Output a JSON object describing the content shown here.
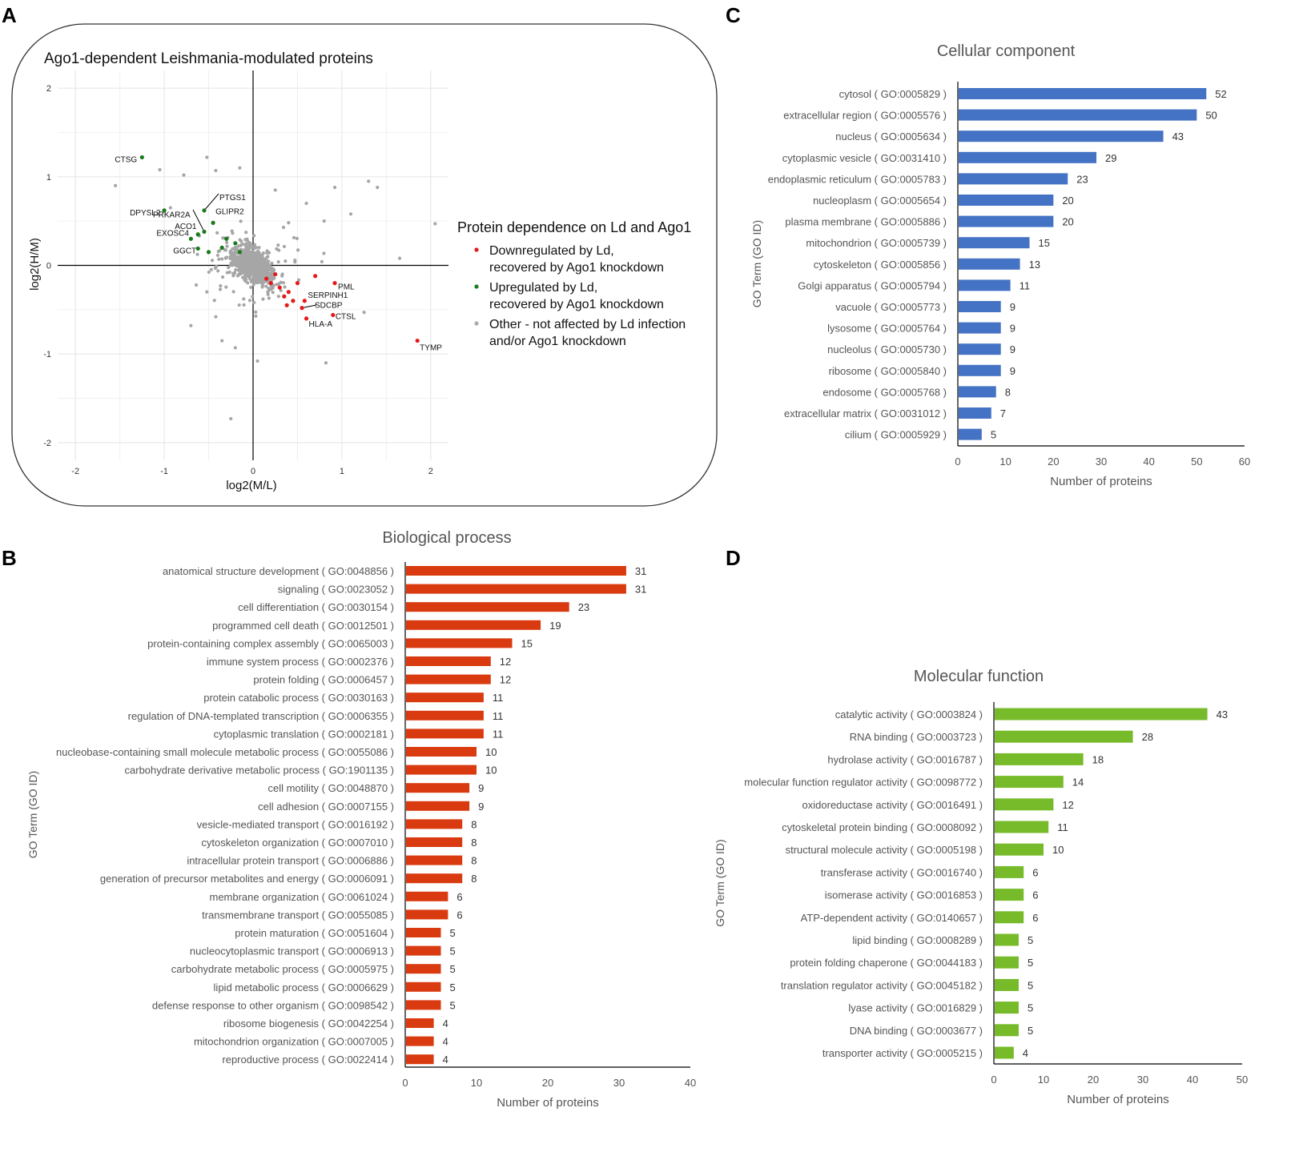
{
  "panels": {
    "a": "A",
    "b": "B",
    "c": "C",
    "d": "D"
  },
  "chart_data": [
    {
      "id": "A",
      "type": "scatter",
      "title_pre": "Ago1-dependent ",
      "title_italic": "Leishmania",
      "title_post": "-modulated proteins",
      "xlabel": "log2(M/L)",
      "ylabel": "log2(H/M)",
      "xlim": [
        -2.2,
        2.2
      ],
      "ylim": [
        -2.2,
        2.2
      ],
      "xticks": [
        -2,
        -1,
        0,
        1,
        2
      ],
      "yticks": [
        -2,
        -1,
        0,
        1,
        2
      ],
      "legend_title": "Protein dependence on Ld and Ago1",
      "legend": [
        {
          "name": "Downregulated by Ld, recovered by Ago1 knockdown",
          "line1": "Downregulated by Ld,",
          "line2": "recovered by Ago1 knockdown",
          "color": "#e41a1c"
        },
        {
          "name": "Upregulated by Ld, recovered by Ago1 knockdown",
          "line1": "Upregulated by Ld,",
          "line2": "recovered by Ago1 knockdown",
          "color": "#1b7a1b"
        },
        {
          "name": "Other - not affected by Ld infection and/or Ago1 knockdown",
          "line1": "Other - not affected by Ld infection",
          "line2": "and/or Ago1 knockdown",
          "color": "#aaaaaa"
        }
      ],
      "labeled_points": [
        {
          "label": "CTSG",
          "x": -1.25,
          "y": 1.22,
          "group": "up"
        },
        {
          "label": "PRKAR2A",
          "x": -0.55,
          "y": 0.38,
          "group": "up"
        },
        {
          "label": "PTGS1",
          "x": -0.55,
          "y": 0.62,
          "group": "up"
        },
        {
          "label": "DPYSL2",
          "x": -1.0,
          "y": 0.62,
          "group": "up"
        },
        {
          "label": "GLIPR2",
          "x": -0.45,
          "y": 0.48,
          "group": "up"
        },
        {
          "label": "ACO1",
          "x": -0.62,
          "y": 0.35,
          "group": "up"
        },
        {
          "label": "EXOSC4",
          "x": -0.7,
          "y": 0.3,
          "group": "up"
        },
        {
          "label": "GGCT",
          "x": -0.62,
          "y": 0.19,
          "group": "up"
        },
        {
          "label": "PML",
          "x": 0.92,
          "y": -0.2,
          "group": "down"
        },
        {
          "label": "SERPINH1",
          "x": 0.58,
          "y": -0.4,
          "group": "down"
        },
        {
          "label": "SDCBP",
          "x": 0.55,
          "y": -0.48,
          "group": "down"
        },
        {
          "label": "HLA-A",
          "x": 0.6,
          "y": -0.6,
          "group": "down"
        },
        {
          "label": "CTSL",
          "x": 0.9,
          "y": -0.56,
          "group": "down"
        },
        {
          "label": "TYMP",
          "x": 1.85,
          "y": -0.85,
          "group": "down"
        }
      ],
      "extra_up_points": [
        [
          -0.35,
          0.2
        ],
        [
          -0.2,
          0.25
        ],
        [
          -0.15,
          0.15
        ],
        [
          -0.5,
          0.15
        ],
        [
          -0.3,
          0.3
        ]
      ],
      "extra_down_points": [
        [
          0.2,
          -0.2
        ],
        [
          0.3,
          -0.25
        ],
        [
          0.35,
          -0.35
        ],
        [
          0.4,
          -0.3
        ],
        [
          0.25,
          -0.1
        ],
        [
          0.45,
          -0.4
        ],
        [
          0.15,
          -0.15
        ],
        [
          0.5,
          -0.2
        ],
        [
          0.7,
          -0.12
        ],
        [
          0.38,
          -0.45
        ]
      ]
    },
    {
      "id": "C",
      "type": "bar",
      "orientation": "horizontal",
      "title": "Cellular component",
      "xlabel": "Number of proteins",
      "ylabel": "GO Term (GO ID)",
      "xlim": [
        0,
        60
      ],
      "xticks": [
        0,
        10,
        20,
        30,
        40,
        50,
        60
      ],
      "color": "#4472c4",
      "categories": [
        "cytosol ( GO:0005829 )",
        "extracellular region ( GO:0005576 )",
        "nucleus ( GO:0005634 )",
        "cytoplasmic vesicle ( GO:0031410 )",
        "endoplasmic reticulum ( GO:0005783 )",
        "nucleoplasm ( GO:0005654 )",
        "plasma membrane ( GO:0005886 )",
        "mitochondrion ( GO:0005739 )",
        "cytoskeleton ( GO:0005856 )",
        "Golgi apparatus ( GO:0005794 )",
        "vacuole ( GO:0005773 )",
        "lysosome ( GO:0005764 )",
        "nucleolus ( GO:0005730 )",
        "ribosome ( GO:0005840 )",
        "endosome ( GO:0005768 )",
        "extracellular matrix ( GO:0031012 )",
        "cilium ( GO:0005929 )"
      ],
      "values": [
        52,
        50,
        43,
        29,
        23,
        20,
        20,
        15,
        13,
        11,
        9,
        9,
        9,
        9,
        8,
        7,
        5
      ]
    },
    {
      "id": "B",
      "type": "bar",
      "orientation": "horizontal",
      "title": "Biological process",
      "xlabel": "Number of proteins",
      "ylabel": "GO Term (GO ID)",
      "xlim": [
        0,
        40
      ],
      "xticks": [
        0,
        10,
        20,
        30,
        40
      ],
      "color": "#d93a0f",
      "categories": [
        "anatomical structure development ( GO:0048856 )",
        "signaling ( GO:0023052 )",
        "cell differentiation ( GO:0030154 )",
        "programmed cell death ( GO:0012501 )",
        "protein-containing complex assembly ( GO:0065003 )",
        "immune system process ( GO:0002376 )",
        "protein folding ( GO:0006457 )",
        "protein catabolic process ( GO:0030163 )",
        "regulation of DNA-templated transcription ( GO:0006355 )",
        "cytoplasmic translation ( GO:0002181 )",
        "nucleobase-containing small molecule metabolic process ( GO:0055086 )",
        "carbohydrate derivative metabolic process ( GO:1901135 )",
        "cell motility ( GO:0048870 )",
        "cell adhesion ( GO:0007155 )",
        "vesicle-mediated transport ( GO:0016192 )",
        "cytoskeleton organization ( GO:0007010 )",
        "intracellular protein transport ( GO:0006886 )",
        "generation of precursor metabolites and energy ( GO:0006091 )",
        "membrane organization ( GO:0061024 )",
        "transmembrane transport ( GO:0055085 )",
        "protein maturation ( GO:0051604 )",
        "nucleocytoplasmic transport ( GO:0006913 )",
        "carbohydrate metabolic process ( GO:0005975 )",
        "lipid metabolic process ( GO:0006629 )",
        "defense response to other organism ( GO:0098542 )",
        "ribosome biogenesis ( GO:0042254 )",
        "mitochondrion organization ( GO:0007005 )",
        "reproductive process ( GO:0022414 )"
      ],
      "values": [
        31,
        31,
        23,
        19,
        15,
        12,
        12,
        11,
        11,
        11,
        10,
        10,
        9,
        9,
        8,
        8,
        8,
        8,
        6,
        6,
        5,
        5,
        5,
        5,
        5,
        4,
        4,
        4
      ]
    },
    {
      "id": "D",
      "type": "bar",
      "orientation": "horizontal",
      "title": "Molecular function",
      "xlabel": "Number of proteins",
      "ylabel": "GO Term (GO ID)",
      "xlim": [
        0,
        50
      ],
      "xticks": [
        0,
        10,
        20,
        30,
        40,
        50
      ],
      "color": "#77bb2a",
      "categories": [
        "catalytic activity ( GO:0003824 )",
        "RNA binding ( GO:0003723 )",
        "hydrolase activity ( GO:0016787 )",
        "molecular function regulator activity ( GO:0098772 )",
        "oxidoreductase activity ( GO:0016491 )",
        "cytoskeletal protein binding ( GO:0008092 )",
        "structural molecule activity ( GO:0005198 )",
        "transferase activity ( GO:0016740 )",
        "isomerase activity ( GO:0016853 )",
        "ATP-dependent activity ( GO:0140657 )",
        "lipid binding ( GO:0008289 )",
        "protein folding chaperone ( GO:0044183 )",
        "translation regulator activity ( GO:0045182 )",
        "lyase activity ( GO:0016829 )",
        "DNA binding ( GO:0003677 )",
        "transporter activity ( GO:0005215 )"
      ],
      "values": [
        43,
        28,
        18,
        14,
        12,
        11,
        10,
        6,
        6,
        6,
        5,
        5,
        5,
        5,
        5,
        4
      ]
    }
  ]
}
